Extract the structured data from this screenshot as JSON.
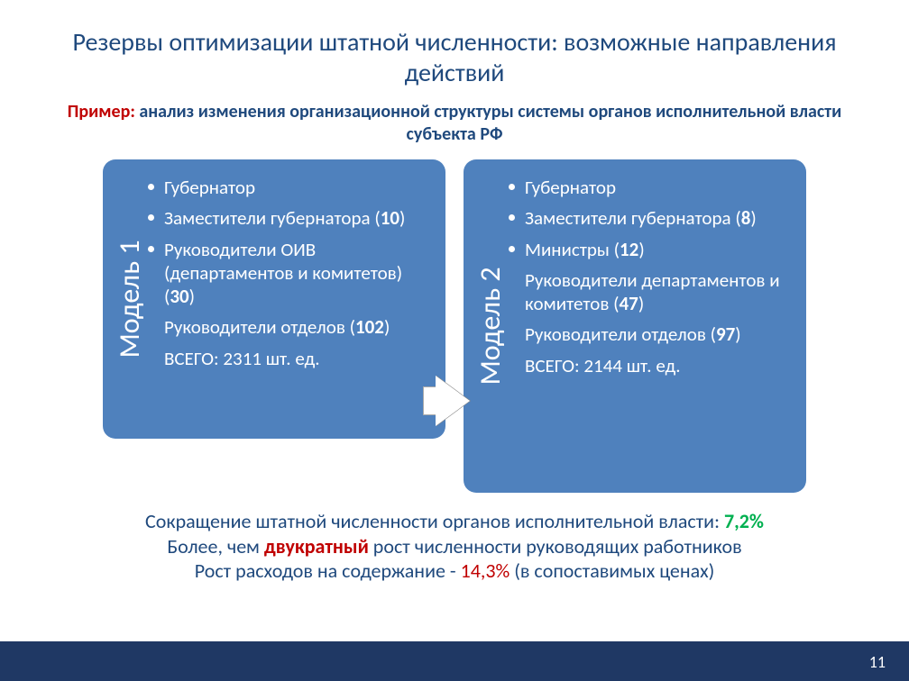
{
  "title": "Резервы оптимизации штатной численности: возможные направления действий",
  "subtitle_prefix": "Пример:",
  "subtitle_rest": " анализ изменения организационной структуры системы органов исполнительной власти субъекта РФ",
  "model1": {
    "label": "Модель 1",
    "items": [
      {
        "text": "Губернатор",
        "bullet": true
      },
      {
        "text_pre": "Заместители губернатора (",
        "bold": "10",
        "text_post": ")",
        "bullet": true
      },
      {
        "text_pre": "Руководители ОИВ (департаментов и комитетов) (",
        "bold": "30",
        "text_post": ")",
        "bullet": true
      },
      {
        "text_pre": "Руководители отделов (",
        "bold": "102",
        "text_post": ")",
        "bullet": false
      },
      {
        "text": "ВСЕГО:  2311 шт. ед.",
        "bullet": false
      }
    ]
  },
  "model2": {
    "label": "Модель 2",
    "items": [
      {
        "text": "Губернатор",
        "bullet": true
      },
      {
        "text_pre": "Заместители губернатора (",
        "bold": "8",
        "text_post": ")",
        "bullet": true
      },
      {
        "text_pre": "Министры (",
        "bold": "12",
        "text_post": ")",
        "bullet": true
      },
      {
        "text_pre": "Руководители департаментов и комитетов  (",
        "bold": "47",
        "text_post": ")",
        "bullet": false
      },
      {
        "text_pre": "Руководители отделов (",
        "bold": "97",
        "text_post": ")",
        "bullet": false
      },
      {
        "text": "ВСЕГО: 2144 шт. ед.",
        "bullet": false
      }
    ]
  },
  "conclusion": {
    "line1_pre": "Сокращение штатной численности органов исполнительной власти: ",
    "line1_green": "7,2%",
    "line2_pre": "Более, чем ",
    "line2_red": "двукратный",
    "line2_post": " рост численности  руководящих работников",
    "line3_pre": "Рост расходов на содержание - ",
    "line3_red": "14,3%",
    "line3_post": " (в сопоставимых ценах)"
  },
  "page_number": "11",
  "colors": {
    "title_color": "#1f497d",
    "card_bg": "#4f81bd",
    "card_text": "#ffffff",
    "footer_bg": "#1f3864",
    "red": "#c00000",
    "green": "#00b050"
  }
}
